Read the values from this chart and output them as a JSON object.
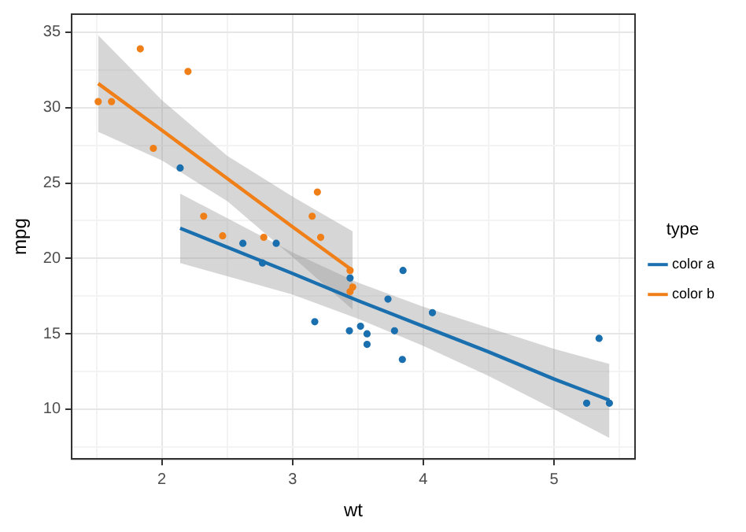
{
  "chart_data": {
    "type": "scatter",
    "xlabel": "wt",
    "ylabel": "mpg",
    "legend_title": "type",
    "legend": "right",
    "grid": true,
    "marker": "circle",
    "xlim": [
      1.31,
      5.62
    ],
    "xticks": [
      2,
      3,
      4,
      5
    ],
    "ylim": [
      6.7,
      36.2
    ],
    "yticks": [
      10,
      15,
      20,
      25,
      30,
      35
    ],
    "series": [
      {
        "name": "color a",
        "color": "#1a6faf",
        "x": [
          2.62,
          2.875,
          3.44,
          3.57,
          4.07,
          3.73,
          3.78,
          5.25,
          5.424,
          5.345,
          3.52,
          3.435,
          3.84,
          3.845,
          2.14,
          3.17,
          2.77,
          3.57
        ],
        "values": [
          21,
          21,
          18.7,
          14.3,
          16.4,
          17.3,
          15.2,
          10.4,
          10.4,
          14.7,
          15.5,
          15.2,
          13.3,
          19.2,
          26,
          15.8,
          19.7,
          15
        ]
      },
      {
        "name": "color b",
        "color": "#f07f18",
        "x": [
          2.32,
          3.215,
          3.46,
          3.19,
          3.15,
          3.44,
          3.44,
          2.2,
          1.615,
          1.835,
          2.465,
          1.935,
          1.513,
          2.78
        ],
        "values": [
          22.8,
          21.4,
          18.1,
          24.4,
          22.8,
          19.2,
          17.8,
          32.4,
          30.4,
          33.9,
          21.5,
          27.3,
          30.4,
          21.4
        ]
      },
      {
        "type": "line",
        "marker": "none",
        "color": "#1a6faf",
        "x": [
          2.14,
          3.0,
          3.5,
          4.0,
          4.5,
          5.0,
          5.424
        ],
        "values": [
          22.0,
          19.0,
          17.2,
          15.5,
          13.8,
          12.0,
          10.6
        ],
        "lower": [
          19.7,
          17.6,
          16.0,
          14.2,
          12.2,
          10.0,
          8.1
        ],
        "upper": [
          24.3,
          20.4,
          18.4,
          16.8,
          15.4,
          14.0,
          13.0
        ]
      },
      {
        "type": "line",
        "marker": "none",
        "color": "#f07f18",
        "x": [
          1.513,
          2.0,
          2.5,
          3.0,
          3.46
        ],
        "values": [
          31.6,
          28.5,
          25.3,
          22.1,
          19.2
        ],
        "lower": [
          28.4,
          26.5,
          23.8,
          20.1,
          16.6
        ],
        "upper": [
          34.8,
          30.5,
          26.8,
          24.1,
          21.8
        ]
      }
    ]
  }
}
